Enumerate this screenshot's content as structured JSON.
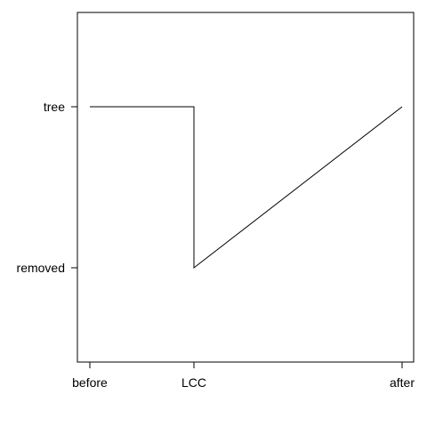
{
  "chart_data": {
    "type": "line",
    "x_categories": [
      "before",
      "LCC",
      "after"
    ],
    "y_categories": [
      "removed",
      "tree"
    ],
    "title": "",
    "xlabel": "",
    "ylabel": "",
    "series": [
      {
        "points": [
          {
            "x": "before",
            "y": "tree"
          },
          {
            "x": "LCC",
            "y": "tree"
          },
          {
            "x": "LCC",
            "y": "removed"
          },
          {
            "x": "after",
            "y": "tree"
          }
        ]
      }
    ],
    "grid": false,
    "line_color": "#000000",
    "axis_color": "#000000"
  }
}
